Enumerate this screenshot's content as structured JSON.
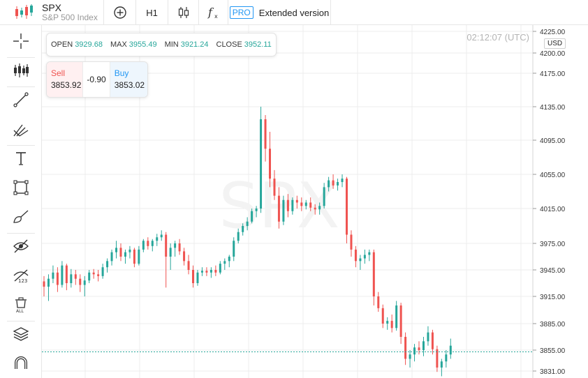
{
  "symbol": {
    "ticker": "SPX",
    "name": "S&P 500 Index"
  },
  "toolbar": {
    "timeframe": "H1",
    "pro_badge": "PRO",
    "extended_label": "Extended version"
  },
  "ohlc": {
    "open_label": "OPEN",
    "open": "3929.68",
    "max_label": "MAX",
    "max": "3955.49",
    "min_label": "MIN",
    "min": "3921.24",
    "close_label": "CLOSE",
    "close": "3952.11"
  },
  "trade": {
    "sell_label": "Sell",
    "sell_price": "3853.92",
    "spread": "-0.90",
    "buy_label": "Buy",
    "buy_price": "3853.02"
  },
  "time": "02:12:07 (UTC)",
  "currency": "USD",
  "watermark": "SPX",
  "colors": {
    "up": "#26a69a",
    "down": "#ef5350",
    "grid": "#ececec",
    "current_line": "#26a69a",
    "axis_text": "#333333"
  },
  "sidebar_icons": [
    "crosshair-icon",
    "indicators-icon",
    "trend-line-icon",
    "fib-icon",
    "text-icon",
    "rectangle-icon",
    "brush-icon",
    "hide-drawings-icon",
    "hide-labels-icon",
    "delete-drawings-icon",
    "layers-icon",
    "magnet-icon"
  ],
  "chart_data": {
    "type": "candlestick",
    "y_ticks": [
      "4225.00",
      "4200.00",
      "4175.00",
      "4135.00",
      "4095.00",
      "4055.00",
      "4015.00",
      "3975.00",
      "3945.00",
      "3915.00",
      "3885.00",
      "3855.00",
      "3831.00"
    ],
    "current_price": 3853.02,
    "candles": [
      [
        3932,
        3938,
        3915,
        3926
      ],
      [
        3926,
        3940,
        3910,
        3935
      ],
      [
        3935,
        3950,
        3930,
        3942
      ],
      [
        3942,
        3948,
        3920,
        3928
      ],
      [
        3928,
        3955,
        3925,
        3950
      ],
      [
        3950,
        3952,
        3922,
        3930
      ],
      [
        3930,
        3946,
        3925,
        3940
      ],
      [
        3940,
        3945,
        3928,
        3935
      ],
      [
        3935,
        3940,
        3920,
        3928
      ],
      [
        3928,
        3938,
        3915,
        3933
      ],
      [
        3933,
        3945,
        3930,
        3942
      ],
      [
        3942,
        3946,
        3935,
        3940
      ],
      [
        3940,
        3945,
        3932,
        3938
      ],
      [
        3938,
        3952,
        3935,
        3948
      ],
      [
        3948,
        3958,
        3942,
        3955
      ],
      [
        3955,
        3968,
        3950,
        3965
      ],
      [
        3965,
        3978,
        3958,
        3970
      ],
      [
        3970,
        3975,
        3955,
        3960
      ],
      [
        3960,
        3968,
        3952,
        3965
      ],
      [
        3965,
        3972,
        3958,
        3968
      ],
      [
        3968,
        3970,
        3948,
        3952
      ],
      [
        3952,
        3972,
        3950,
        3968
      ],
      [
        3968,
        3980,
        3965,
        3978
      ],
      [
        3978,
        3982,
        3968,
        3972
      ],
      [
        3972,
        3980,
        3966,
        3978
      ],
      [
        3978,
        3986,
        3972,
        3982
      ],
      [
        3982,
        3990,
        3978,
        3985
      ],
      [
        3985,
        3988,
        3925,
        3960
      ],
      [
        3960,
        3975,
        3945,
        3970
      ],
      [
        3970,
        3978,
        3960,
        3975
      ],
      [
        3975,
        3980,
        3962,
        3966
      ],
      [
        3966,
        3970,
        3950,
        3955
      ],
      [
        3955,
        3962,
        3940,
        3945
      ],
      [
        3945,
        3950,
        3925,
        3930
      ],
      [
        3930,
        3945,
        3927,
        3942
      ],
      [
        3942,
        3948,
        3938,
        3944
      ],
      [
        3944,
        3948,
        3938,
        3942
      ],
      [
        3942,
        3948,
        3936,
        3945
      ],
      [
        3945,
        3950,
        3938,
        3942
      ],
      [
        3942,
        3955,
        3940,
        3952
      ],
      [
        3952,
        3958,
        3945,
        3955
      ],
      [
        3955,
        3962,
        3948,
        3960
      ],
      [
        3960,
        3982,
        3955,
        3978
      ],
      [
        3978,
        3992,
        3975,
        3988
      ],
      [
        3988,
        3998,
        3984,
        3995
      ],
      [
        3995,
        4005,
        3990,
        4000
      ],
      [
        4000,
        4015,
        3998,
        4012
      ],
      [
        4012,
        4018,
        4005,
        4015
      ],
      [
        4015,
        4135,
        4010,
        4120
      ],
      [
        4120,
        4125,
        4070,
        4085
      ],
      [
        4085,
        4105,
        4040,
        4050
      ],
      [
        4050,
        4060,
        4025,
        4030
      ],
      [
        4030,
        4040,
        3992,
        4000
      ],
      [
        4000,
        4030,
        3996,
        4025
      ],
      [
        4025,
        4032,
        4005,
        4012
      ],
      [
        4012,
        4028,
        4008,
        4025
      ],
      [
        4025,
        4030,
        4015,
        4022
      ],
      [
        4022,
        4028,
        4012,
        4018
      ],
      [
        4018,
        4025,
        4014,
        4022
      ],
      [
        4022,
        4028,
        4012,
        4016
      ],
      [
        4016,
        4020,
        4008,
        4014
      ],
      [
        4014,
        4022,
        4008,
        4018
      ],
      [
        4018,
        4045,
        4015,
        4040
      ],
      [
        4040,
        4052,
        4035,
        4048
      ],
      [
        4048,
        4055,
        4038,
        4042
      ],
      [
        4042,
        4050,
        4036,
        4046
      ],
      [
        4046,
        4055,
        4040,
        4050
      ],
      [
        4050,
        4052,
        3975,
        3985
      ],
      [
        3985,
        3990,
        3960,
        3968
      ],
      [
        3968,
        3972,
        3948,
        3955
      ],
      [
        3955,
        3962,
        3945,
        3958
      ],
      [
        3958,
        3968,
        3952,
        3962
      ],
      [
        3962,
        3968,
        3955,
        3965
      ],
      [
        3965,
        3968,
        3905,
        3915
      ],
      [
        3915,
        3920,
        3898,
        3902
      ],
      [
        3902,
        3906,
        3880,
        3885
      ],
      [
        3885,
        3892,
        3878,
        3888
      ],
      [
        3888,
        3895,
        3875,
        3880
      ],
      [
        3880,
        3910,
        3877,
        3905
      ],
      [
        3905,
        3908,
        3862,
        3870
      ],
      [
        3870,
        3875,
        3838,
        3845
      ],
      [
        3845,
        3855,
        3835,
        3850
      ],
      [
        3850,
        3862,
        3842,
        3858
      ],
      [
        3858,
        3865,
        3850,
        3855
      ],
      [
        3855,
        3870,
        3848,
        3865
      ],
      [
        3865,
        3882,
        3860,
        3875
      ],
      [
        3875,
        3878,
        3850,
        3856
      ],
      [
        3856,
        3860,
        3830,
        3835
      ],
      [
        3835,
        3845,
        3825,
        3842
      ],
      [
        3842,
        3855,
        3835,
        3850
      ],
      [
        3850,
        3868,
        3845,
        3860
      ]
    ]
  }
}
